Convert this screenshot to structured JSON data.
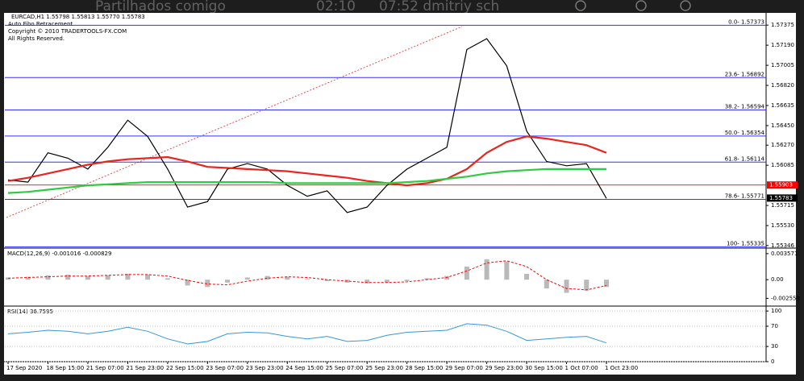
{
  "overlay": {
    "left": "Partilhados comigo",
    "time": "02:10",
    "right": "07:52 dmitriy sch"
  },
  "header": {
    "symbol": "EURCAD,H1  1.55798 1.55813 1.55770 1.55783",
    "indicator": "Auto Fibo Retracement",
    "copyright": "Copyright © 2010 TRADERTOOLS-FX.COM",
    "rights": "All Rights Reserved."
  },
  "chart_data": [
    {
      "type": "line",
      "categories": [
        "17 Sep 2020",
        null,
        "18 Sep 15:00",
        null,
        "21 Sep 07:00",
        null,
        "21 Sep 23:00",
        null,
        "22 Sep 15:00",
        null,
        "23 Sep 07:00",
        null,
        "23 Sep 23:00",
        null,
        "24 Sep 15:00",
        null,
        "25 Sep 07:00",
        null,
        "25 Sep 23:00",
        null,
        "28 Sep 15:00",
        null,
        "29 Sep 07:00",
        null,
        "29 Sep 23:00",
        null,
        "30 Sep 15:00",
        null,
        "1 Oct 07:00",
        null,
        "1 Oct 23:00"
      ],
      "series": [
        {
          "color": "#000000",
          "values": [
            1.5595,
            1.5593,
            1.562,
            1.5615,
            1.5605,
            1.5625,
            1.565,
            1.5635,
            1.5605,
            1.557,
            1.5575,
            1.5605,
            1.561,
            1.5605,
            1.559,
            1.558,
            1.5585,
            1.5565,
            1.557,
            1.559,
            1.5605,
            1.5615,
            1.5625,
            1.5715,
            1.5725,
            1.57,
            1.564,
            1.5612,
            1.5608,
            1.561,
            1.5578
          ]
        },
        {
          "color": "#e8261c",
          "values": [
            1.5594,
            1.5597,
            1.5601,
            1.5605,
            1.5609,
            1.5612,
            1.5614,
            1.5615,
            1.5616,
            1.5612,
            1.5607,
            1.5606,
            1.5605,
            1.5604,
            1.5603,
            1.5601,
            1.5599,
            1.5597,
            1.5594,
            1.5592,
            1.559,
            1.5592,
            1.5596,
            1.5605,
            1.562,
            1.563,
            1.5635,
            1.5633,
            1.563,
            1.5627,
            1.562
          ]
        },
        {
          "color": "#2ecc40",
          "values": [
            1.5583,
            1.5584,
            1.5586,
            1.5588,
            1.559,
            1.5591,
            1.5592,
            1.5593,
            1.5593,
            1.5593,
            1.5593,
            1.5593,
            1.5593,
            1.5593,
            1.5592,
            1.5592,
            1.5592,
            1.5592,
            1.5592,
            1.5592,
            1.5593,
            1.5594,
            1.5596,
            1.5598,
            1.5601,
            1.5603,
            1.5604,
            1.5605,
            1.5605,
            1.5605,
            1.5605
          ]
        }
      ],
      "ylim": [
        1.5533,
        1.5748
      ],
      "yticks": [
        1.57375,
        {
          "value": 1.5719,
          "label": "1.57190"
        },
        1.57005,
        {
          "value": 1.5682,
          "label": "1.56820"
        },
        1.56635,
        {
          "value": 1.5645,
          "label": "1.56450"
        },
        {
          "value": 1.5627,
          "label": "1.56270"
        },
        1.56085,
        1.55715,
        {
          "value": 1.5553,
          "label": "1.55530"
        },
        1.55346
      ],
      "fib_color": "#3333ff",
      "fib_levels": [
        {
          "value": 1.57373,
          "label": "0.0- 1.57373"
        },
        {
          "value": 1.56892,
          "label": "23.6- 1.56892"
        },
        {
          "value": 1.56594,
          "label": "38.2- 1.56594"
        },
        {
          "value": 1.56354,
          "label": "50.0- 1.56354"
        },
        {
          "value": 1.56114,
          "label": "61.8- 1.56114"
        },
        {
          "value": 1.55771,
          "label": "78.6- 1.55771"
        },
        {
          "value": 1.55335,
          "label": "100- 1.55335"
        }
      ],
      "price_markers": [
        {
          "value": 1.55903,
          "color": "#ff0000"
        },
        {
          "value": 1.55783,
          "color": "#000000"
        }
      ]
    },
    {
      "type": "bar",
      "title": "MACD(12,26,9) -0.001016 -0.000829",
      "series": [
        {
          "color": "#a8a8a8",
          "values": [
            0.0003,
            0.0004,
            0.0006,
            0.0007,
            0.0005,
            0.0006,
            0.0008,
            0.0007,
            0.0002,
            -0.0008,
            -0.001,
            -0.0004,
            0.0003,
            0.0005,
            0.0004,
            0.0001,
            -0.0002,
            -0.0004,
            -0.0005,
            -0.0004,
            -0.0002,
            0.0002,
            0.0005,
            0.0018,
            0.0028,
            0.0025,
            0.0008,
            -0.0012,
            -0.0018,
            -0.0015,
            -0.001
          ]
        },
        {
          "color": "#ff0000",
          "dashed": true,
          "values": [
            0.0002,
            0.0003,
            0.0004,
            0.0005,
            0.0005,
            0.0006,
            0.0007,
            0.0007,
            0.0005,
            -0.0001,
            -0.0006,
            -0.0007,
            -0.0002,
            0.0002,
            0.0004,
            0.0003,
            0.0,
            -0.0002,
            -0.0004,
            -0.0004,
            -0.0003,
            0.0,
            0.0003,
            0.0012,
            0.0023,
            0.0026,
            0.0018,
            0.0,
            -0.0012,
            -0.0014,
            -0.0008
          ]
        }
      ],
      "ylim": [
        -0.0034,
        0.004
      ],
      "yticks": [
        0.003571,
        {
          "value": 0,
          "label": "0.00"
        },
        -0.002559
      ]
    },
    {
      "type": "line",
      "title": "RSI(14) 36.7595",
      "series": [
        {
          "color": "#3399dd",
          "values": [
            55,
            58,
            62,
            60,
            55,
            60,
            68,
            60,
            45,
            35,
            40,
            55,
            58,
            57,
            50,
            45,
            50,
            40,
            42,
            52,
            58,
            60,
            62,
            75,
            72,
            60,
            42,
            45,
            48,
            50,
            37
          ]
        }
      ],
      "ylim": [
        0,
        105
      ],
      "yticks": [
        100,
        70,
        30,
        0
      ],
      "grid": true
    }
  ]
}
